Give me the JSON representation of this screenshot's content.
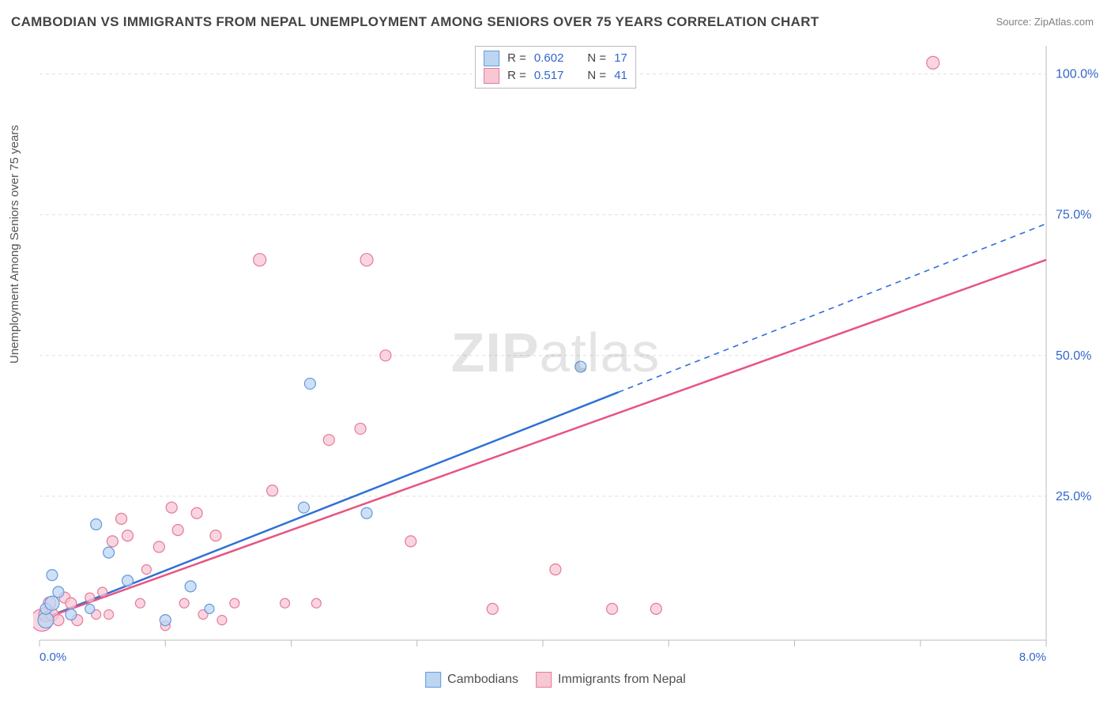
{
  "title": "CAMBODIAN VS IMMIGRANTS FROM NEPAL UNEMPLOYMENT AMONG SENIORS OVER 75 YEARS CORRELATION CHART",
  "source_label": "Source: ",
  "source_value": "ZipAtlas.com",
  "ylabel": "Unemployment Among Seniors over 75 years",
  "watermark_a": "ZIP",
  "watermark_b": "atlas",
  "chart": {
    "type": "scatter-with-regression",
    "background_color": "#ffffff",
    "grid_color": "#e0e0e0",
    "axis_color": "#bbbbbb",
    "label_color": "#3366cc",
    "label_fontsize": 15,
    "xlim": [
      0,
      8.0
    ],
    "ylim": [
      0,
      105
    ],
    "x_tick_positions": [
      0,
      1,
      2,
      3,
      4,
      5,
      6,
      7,
      8
    ],
    "x_tick_labels_shown": {
      "0": "0.0%",
      "8": "8.0%"
    },
    "y_tick_positions": [
      25,
      50,
      75,
      100
    ],
    "y_tick_labels": [
      "25.0%",
      "50.0%",
      "75.0%",
      "100.0%"
    ],
    "series": [
      {
        "id": "cambodians",
        "label": "Cambodians",
        "color_fill": "#bcd6f2",
        "color_stroke": "#6699dd",
        "trend_color": "#2e6fd6",
        "trend_width": 2.5,
        "trend_solid_to_x": 4.6,
        "trend_dashed": true,
        "intercept": 3.0,
        "slope": 8.8,
        "R": 0.602,
        "N": 17,
        "points": [
          {
            "x": 0.05,
            "y": 3,
            "r": 10
          },
          {
            "x": 0.05,
            "y": 5,
            "r": 7
          },
          {
            "x": 0.1,
            "y": 6,
            "r": 9
          },
          {
            "x": 0.1,
            "y": 11,
            "r": 7
          },
          {
            "x": 0.15,
            "y": 8,
            "r": 7
          },
          {
            "x": 0.25,
            "y": 4,
            "r": 7
          },
          {
            "x": 0.4,
            "y": 5,
            "r": 6
          },
          {
            "x": 0.45,
            "y": 20,
            "r": 7
          },
          {
            "x": 0.55,
            "y": 15,
            "r": 7
          },
          {
            "x": 0.7,
            "y": 10,
            "r": 7
          },
          {
            "x": 1.0,
            "y": 3,
            "r": 7
          },
          {
            "x": 1.2,
            "y": 9,
            "r": 7
          },
          {
            "x": 1.35,
            "y": 5,
            "r": 6
          },
          {
            "x": 2.1,
            "y": 23,
            "r": 7
          },
          {
            "x": 2.15,
            "y": 45,
            "r": 7
          },
          {
            "x": 2.6,
            "y": 22,
            "r": 7
          },
          {
            "x": 4.3,
            "y": 48,
            "r": 7
          }
        ]
      },
      {
        "id": "nepal",
        "label": "Immigrants from Nepal",
        "color_fill": "#f7c7d4",
        "color_stroke": "#e47a9a",
        "trend_color": "#e75480",
        "trend_width": 2.5,
        "trend_solid_to_x": 8.0,
        "trend_dashed": false,
        "intercept": 3.0,
        "slope": 8.0,
        "R": 0.517,
        "N": 41,
        "points": [
          {
            "x": 0.02,
            "y": 3,
            "r": 14
          },
          {
            "x": 0.05,
            "y": 4,
            "r": 9
          },
          {
            "x": 0.08,
            "y": 6,
            "r": 8
          },
          {
            "x": 0.1,
            "y": 4,
            "r": 8
          },
          {
            "x": 0.15,
            "y": 3,
            "r": 7
          },
          {
            "x": 0.2,
            "y": 7,
            "r": 7
          },
          {
            "x": 0.25,
            "y": 6,
            "r": 7
          },
          {
            "x": 0.3,
            "y": 3,
            "r": 7
          },
          {
            "x": 0.4,
            "y": 7,
            "r": 6
          },
          {
            "x": 0.45,
            "y": 4,
            "r": 6
          },
          {
            "x": 0.5,
            "y": 8,
            "r": 6
          },
          {
            "x": 0.55,
            "y": 4,
            "r": 6
          },
          {
            "x": 0.58,
            "y": 17,
            "r": 7
          },
          {
            "x": 0.65,
            "y": 21,
            "r": 7
          },
          {
            "x": 0.7,
            "y": 18,
            "r": 7
          },
          {
            "x": 0.8,
            "y": 6,
            "r": 6
          },
          {
            "x": 0.85,
            "y": 12,
            "r": 6
          },
          {
            "x": 0.95,
            "y": 16,
            "r": 7
          },
          {
            "x": 1.0,
            "y": 2,
            "r": 6
          },
          {
            "x": 1.05,
            "y": 23,
            "r": 7
          },
          {
            "x": 1.1,
            "y": 19,
            "r": 7
          },
          {
            "x": 1.15,
            "y": 6,
            "r": 6
          },
          {
            "x": 1.25,
            "y": 22,
            "r": 7
          },
          {
            "x": 1.3,
            "y": 4,
            "r": 6
          },
          {
            "x": 1.4,
            "y": 18,
            "r": 7
          },
          {
            "x": 1.45,
            "y": 3,
            "r": 6
          },
          {
            "x": 1.55,
            "y": 6,
            "r": 6
          },
          {
            "x": 1.75,
            "y": 67,
            "r": 8
          },
          {
            "x": 1.85,
            "y": 26,
            "r": 7
          },
          {
            "x": 1.95,
            "y": 6,
            "r": 6
          },
          {
            "x": 2.2,
            "y": 6,
            "r": 6
          },
          {
            "x": 2.3,
            "y": 35,
            "r": 7
          },
          {
            "x": 2.55,
            "y": 37,
            "r": 7
          },
          {
            "x": 2.6,
            "y": 67,
            "r": 8
          },
          {
            "x": 2.75,
            "y": 50,
            "r": 7
          },
          {
            "x": 2.95,
            "y": 17,
            "r": 7
          },
          {
            "x": 3.6,
            "y": 5,
            "r": 7
          },
          {
            "x": 4.1,
            "y": 12,
            "r": 7
          },
          {
            "x": 4.55,
            "y": 5,
            "r": 7
          },
          {
            "x": 4.9,
            "y": 5,
            "r": 7
          },
          {
            "x": 7.1,
            "y": 102,
            "r": 8
          }
        ]
      }
    ]
  },
  "legend_top": {
    "rows": [
      {
        "swatch_fill": "#bcd6f2",
        "swatch_stroke": "#6699dd",
        "r_label": "R =",
        "r_val": "0.602",
        "n_label": "N =",
        "n_val": "17"
      },
      {
        "swatch_fill": "#f7c7d4",
        "swatch_stroke": "#e47a9a",
        "r_label": "R =",
        "r_val": "0.517",
        "n_label": "N =",
        "n_val": "41"
      }
    ]
  },
  "legend_bottom": {
    "items": [
      {
        "swatch_fill": "#bcd6f2",
        "swatch_stroke": "#6699dd",
        "label": "Cambodians"
      },
      {
        "swatch_fill": "#f7c7d4",
        "swatch_stroke": "#e47a9a",
        "label": "Immigrants from Nepal"
      }
    ]
  }
}
